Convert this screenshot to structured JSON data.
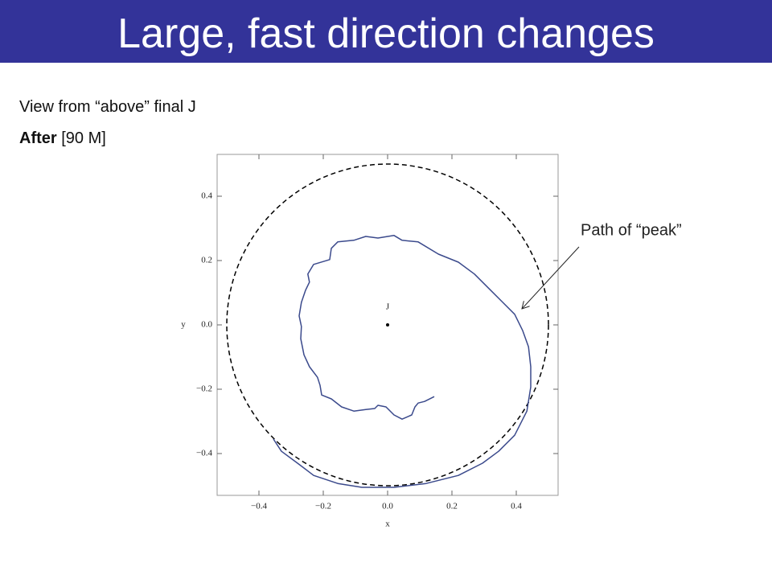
{
  "slide": {
    "title": "Large, fast direction changes",
    "line1": "View from “above” final J",
    "line2_bold": "After",
    "line2_rest": "[90 M]"
  },
  "chart_data": {
    "type": "line",
    "annotation": "Path of “peak”",
    "xlabel": "x",
    "ylabel": "y",
    "xlim": [
      -0.53,
      0.53
    ],
    "ylim": [
      -0.53,
      0.53
    ],
    "xticks": [
      {
        "value": -0.4,
        "label": "−0.4"
      },
      {
        "value": -0.2,
        "label": "−0.2"
      },
      {
        "value": 0,
        "label": "0.0"
      },
      {
        "value": 0.2,
        "label": "0.2"
      },
      {
        "value": 0.4,
        "label": "0.4"
      }
    ],
    "yticks": [
      {
        "value": -0.4,
        "label": "−0.4"
      },
      {
        "value": -0.2,
        "label": "−0.2"
      },
      {
        "value": 0,
        "label": "0.0"
      },
      {
        "value": 0.2,
        "label": "0.2"
      },
      {
        "value": 0.4,
        "label": "0.4"
      }
    ],
    "circle_radius": 0.5,
    "point": {
      "label": "J",
      "x": 0,
      "y": 0
    },
    "series": [
      {
        "color": "#3b4a8c",
        "x": [
          0.145,
          0.115,
          0.095,
          0.085,
          0.075,
          0.045,
          0.02,
          -0.005,
          -0.03,
          -0.04,
          -0.068,
          -0.105,
          -0.143,
          -0.175,
          -0.205,
          -0.21,
          -0.218,
          -0.243,
          -0.26,
          -0.27,
          -0.268,
          -0.275,
          -0.268,
          -0.255,
          -0.243,
          -0.248,
          -0.23,
          -0.18,
          -0.175,
          -0.155,
          -0.105,
          -0.068,
          -0.03,
          0.02,
          0.045,
          0.095,
          0.158,
          0.22,
          0.27,
          0.32,
          0.358,
          0.395,
          0.42,
          0.438,
          0.445,
          0.445,
          0.433,
          0.395,
          0.345,
          0.295,
          0.22,
          0.12,
          0.02,
          -0.08,
          -0.155,
          -0.23,
          -0.28,
          -0.33,
          -0.355
        ],
        "values": [
          -0.223,
          -0.238,
          -0.243,
          -0.255,
          -0.28,
          -0.293,
          -0.28,
          -0.255,
          -0.25,
          -0.26,
          -0.263,
          -0.268,
          -0.255,
          -0.23,
          -0.218,
          -0.188,
          -0.163,
          -0.13,
          -0.093,
          -0.043,
          -0.005,
          0.028,
          0.07,
          0.108,
          0.133,
          0.158,
          0.188,
          0.203,
          0.238,
          0.258,
          0.263,
          0.275,
          0.27,
          0.278,
          0.263,
          0.258,
          0.22,
          0.195,
          0.158,
          0.108,
          0.07,
          0.033,
          -0.018,
          -0.068,
          -0.13,
          -0.193,
          -0.268,
          -0.343,
          -0.393,
          -0.43,
          -0.468,
          -0.493,
          -0.505,
          -0.505,
          -0.493,
          -0.468,
          -0.43,
          -0.393,
          -0.355
        ]
      }
    ]
  }
}
